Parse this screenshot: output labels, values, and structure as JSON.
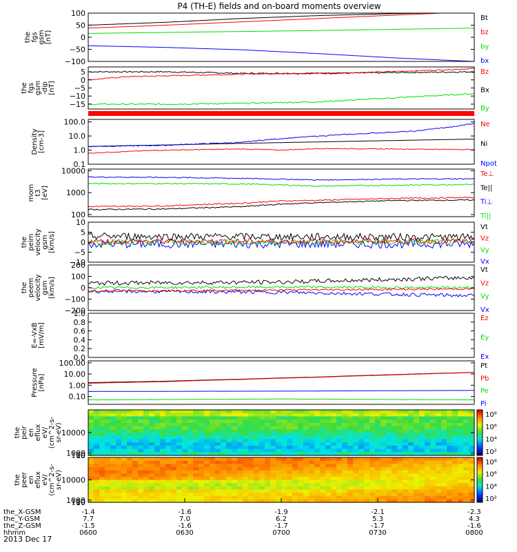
{
  "title": "P4 (TH-E) fields and on-board moments overview",
  "date_label": "2013 Dec 17",
  "ephemeris": {
    "rows": [
      {
        "label": "the_X-GSM",
        "values": [
          "-1.4",
          "-1.6",
          "-1.9",
          "-2.1",
          "-2.3"
        ]
      },
      {
        "label": "the_Y-GSM",
        "values": [
          "7.7",
          "7.0",
          "6.2",
          "5.3",
          "4.3"
        ]
      },
      {
        "label": "the_Z-GSM",
        "values": [
          "-1.5",
          "-1.6",
          "-1.7",
          "-1.7",
          "-1.6"
        ]
      },
      {
        "label": "hhmm",
        "values": [
          "0600",
          "0630",
          "0700",
          "0730",
          "0800"
        ]
      }
    ]
  },
  "colorbar_ticks": [
    "10⁸",
    "10⁶",
    "10⁴",
    "10²"
  ],
  "chart_data": [
    {
      "type": "line",
      "ylabel": [
        "the",
        "fgs",
        "gsm",
        "[nT]"
      ],
      "ylim": [
        -100,
        100
      ],
      "yticks": [
        "100",
        "50",
        "0",
        "−50",
        "−100"
      ],
      "legend": [
        {
          "name": "Bt",
          "color": "#000000"
        },
        {
          "name": "bz",
          "color": "#ff0000"
        },
        {
          "name": "by",
          "color": "#00dd00"
        },
        {
          "name": "bx",
          "color": "#0000ff"
        }
      ],
      "series": [
        {
          "name": "Bt",
          "color": "#000000",
          "x": [
            0,
            0.2,
            0.4,
            0.6,
            0.8,
            1.0
          ],
          "y": [
            50,
            62,
            78,
            90,
            98,
            103
          ]
        },
        {
          "name": "bz",
          "color": "#ff0000",
          "x": [
            0,
            0.2,
            0.4,
            0.6,
            0.8,
            1.0
          ],
          "y": [
            38,
            50,
            64,
            78,
            92,
            106
          ]
        },
        {
          "name": "by",
          "color": "#00dd00",
          "x": [
            0,
            0.2,
            0.4,
            0.6,
            0.8,
            1.0
          ],
          "y": [
            16,
            20,
            24,
            28,
            33,
            38
          ]
        },
        {
          "name": "bx",
          "color": "#0000ff",
          "x": [
            0,
            0.2,
            0.4,
            0.6,
            0.8,
            1.0
          ],
          "y": [
            -35,
            -42,
            -52,
            -68,
            -86,
            -100
          ]
        }
      ]
    },
    {
      "type": "line",
      "ylabel": [
        "the",
        "fgs",
        "gsm",
        "-dip",
        "[nT]"
      ],
      "ylim": [
        -18,
        8
      ],
      "yticks": [
        "5",
        "0",
        "−5",
        "−10",
        "−15"
      ],
      "legend": [
        {
          "name": "Bz",
          "color": "#ff0000"
        },
        {
          "name": "Bx",
          "color": "#000000"
        },
        {
          "name": "By",
          "color": "#00dd00"
        }
      ],
      "series": [
        {
          "name": "Bx",
          "color": "#000000",
          "x": [
            0,
            0.2,
            0.4,
            0.6,
            0.8,
            1.0
          ],
          "y": [
            5,
            5,
            4,
            4,
            4.5,
            5
          ],
          "noise": 0.4
        },
        {
          "name": "Bz",
          "color": "#ff0000",
          "x": [
            0,
            0.1,
            0.3,
            0.5,
            0.7,
            0.9,
            1.0
          ],
          "y": [
            0,
            2,
            3,
            4,
            4.5,
            6,
            7
          ],
          "noise": 0.3
        },
        {
          "name": "By",
          "color": "#00dd00",
          "x": [
            0,
            0.2,
            0.4,
            0.6,
            0.8,
            1.0
          ],
          "y": [
            -15,
            -15,
            -14.5,
            -13.5,
            -11,
            -8.5
          ],
          "noise": 0.4
        }
      ]
    },
    {
      "type": "line",
      "log": true,
      "ylabel": [
        "Density",
        "[cm-3]"
      ],
      "ylim": [
        0.1,
        150
      ],
      "yticks": [
        "100.0",
        "10.0",
        "1.0",
        "0.1"
      ],
      "legend": [
        {
          "name": "Ne",
          "color": "#ff0000"
        },
        {
          "name": "Ni",
          "color": "#000000"
        },
        {
          "name": "Npot",
          "color": "#0000ff"
        }
      ],
      "series": [
        {
          "name": "Ni",
          "color": "#000000",
          "x": [
            0,
            0.2,
            0.4,
            0.6,
            0.8,
            1.0
          ],
          "y": [
            1.8,
            2.3,
            3.0,
            3.8,
            4.8,
            6.0
          ]
        },
        {
          "name": "Npot",
          "color": "#0000ff",
          "x": [
            0,
            0.2,
            0.4,
            0.55,
            0.7,
            0.85,
            0.95,
            1.0
          ],
          "y": [
            1.8,
            2.2,
            3.5,
            8,
            14,
            22,
            45,
            80
          ],
          "noise": 0.08
        },
        {
          "name": "Ne",
          "color": "#ff0000",
          "x": [
            0,
            0.2,
            0.4,
            0.5,
            0.6,
            0.8,
            1.0
          ],
          "y": [
            0.6,
            1.0,
            1.2,
            1.0,
            1.3,
            1.2,
            1.1
          ],
          "noise": 0.06
        }
      ]
    },
    {
      "type": "line",
      "log": true,
      "ylabel": [
        "mom",
        "t3",
        "[eV]"
      ],
      "ylim": [
        80,
        12000
      ],
      "yticks": [
        "10000",
        "1000",
        "100"
      ],
      "legend": [
        {
          "name": "Te⊥",
          "color": "#ff0000"
        },
        {
          "name": "Te||",
          "color": "#000000"
        },
        {
          "name": "Ti⊥",
          "color": "#0000ff"
        },
        {
          "name": "Ti||",
          "color": "#00dd00"
        }
      ],
      "series": [
        {
          "name": "Ti⊥",
          "color": "#0000ff",
          "x": [
            0,
            0.2,
            0.4,
            0.6,
            0.8,
            1.0
          ],
          "y": [
            5200,
            5000,
            4500,
            3800,
            4200,
            4300
          ],
          "noise": 0.05
        },
        {
          "name": "Ti||",
          "color": "#00dd00",
          "x": [
            0,
            0.2,
            0.4,
            0.6,
            0.8,
            1.0
          ],
          "y": [
            2600,
            2600,
            2500,
            2000,
            2200,
            2400
          ],
          "noise": 0.06
        },
        {
          "name": "Te⊥",
          "color": "#ff0000",
          "x": [
            0,
            0.2,
            0.4,
            0.5,
            0.6,
            0.8,
            1.0
          ],
          "y": [
            230,
            250,
            330,
            420,
            450,
            550,
            600
          ],
          "noise": 0.06
        },
        {
          "name": "Te||",
          "color": "#000000",
          "x": [
            0,
            0.2,
            0.4,
            0.5,
            0.6,
            0.8,
            1.0
          ],
          "y": [
            170,
            180,
            230,
            300,
            350,
            440,
            460
          ],
          "noise": 0.06
        }
      ]
    },
    {
      "type": "line",
      "ylabel": [
        "the",
        "peim",
        "velocity",
        "gsm",
        "[km/s]"
      ],
      "ylim": [
        -10,
        10
      ],
      "yticks": [
        "10",
        "5",
        "0",
        "−5",
        "−10"
      ],
      "legend": [
        {
          "name": "Vt",
          "color": "#000000"
        },
        {
          "name": "Vz",
          "color": "#ff0000"
        },
        {
          "name": "Vy",
          "color": "#00dd00"
        },
        {
          "name": "Vx",
          "color": "#0000ff"
        }
      ],
      "series": [
        {
          "name": "Vx",
          "color": "#0000ff",
          "x": [
            0,
            1.0
          ],
          "y": [
            -1,
            -1
          ],
          "noise": 2.0
        },
        {
          "name": "Vy",
          "color": "#00dd00",
          "x": [
            0,
            1.0
          ],
          "y": [
            0,
            0
          ],
          "noise": 1.5
        },
        {
          "name": "Vz",
          "color": "#ff0000",
          "x": [
            0,
            1.0
          ],
          "y": [
            0.5,
            0.5
          ],
          "noise": 1.3
        },
        {
          "name": "Vt",
          "color": "#000000",
          "x": [
            0,
            1.0
          ],
          "y": [
            3,
            2.5
          ],
          "noise": 1.8
        }
      ]
    },
    {
      "type": "line",
      "ylabel": [
        "the",
        "peem",
        "velocity",
        "gsm",
        "[km/s]"
      ],
      "ylim": [
        -200,
        200
      ],
      "yticks": [
        "200",
        "100",
        "0",
        "−100",
        "−200"
      ],
      "legend": [
        {
          "name": "Vt",
          "color": "#000000"
        },
        {
          "name": "Vz",
          "color": "#ff0000"
        },
        {
          "name": "Vy",
          "color": "#00dd00"
        },
        {
          "name": "Vx",
          "color": "#0000ff"
        }
      ],
      "series": [
        {
          "name": "Vx",
          "color": "#0000ff",
          "x": [
            0,
            0.5,
            1.0
          ],
          "y": [
            -30,
            -40,
            -70
          ],
          "noise": 15
        },
        {
          "name": "Vy",
          "color": "#00dd00",
          "x": [
            0,
            0.5,
            1.0
          ],
          "y": [
            0,
            5,
            0
          ],
          "noise": 10
        },
        {
          "name": "Vz",
          "color": "#ff0000",
          "x": [
            0,
            0.5,
            1.0
          ],
          "y": [
            -30,
            -20,
            -10
          ],
          "noise": 8
        },
        {
          "name": "Vt",
          "color": "#000000",
          "x": [
            0,
            0.5,
            1.0
          ],
          "y": [
            40,
            50,
            90
          ],
          "noise": 18
        }
      ]
    },
    {
      "type": "line",
      "ylabel": [
        "E=-VxB",
        "[mV/m]"
      ],
      "ylim": [
        0,
        1
      ],
      "yticks": [
        "1.0",
        "0.8",
        "0.6",
        "0.4",
        "0.2",
        "0.0"
      ],
      "legend": [
        {
          "name": "Ez",
          "color": "#ff0000"
        },
        {
          "name": "Ey",
          "color": "#00dd00"
        },
        {
          "name": "Ex",
          "color": "#0000ff"
        }
      ],
      "series": []
    },
    {
      "type": "line",
      "log": true,
      "ylabel": [
        "Pressure",
        "[nPa]"
      ],
      "ylim": [
        0.02,
        150
      ],
      "yticks": [
        "100.00",
        "10.00",
        "1.00",
        "0.10"
      ],
      "legend": [
        {
          "name": "Pt",
          "color": "#000000"
        },
        {
          "name": "Pb",
          "color": "#ff0000"
        },
        {
          "name": "Pe",
          "color": "#00dd00"
        },
        {
          "name": "Pi",
          "color": "#0000ff"
        }
      ],
      "series": [
        {
          "name": "Pt",
          "color": "#000000",
          "x": [
            0,
            0.2,
            0.4,
            0.6,
            0.8,
            1.0
          ],
          "y": [
            1.7,
            2.3,
            3.5,
            5.5,
            9,
            14
          ]
        },
        {
          "name": "Pb",
          "color": "#ff0000",
          "x": [
            0,
            0.2,
            0.4,
            0.6,
            0.8,
            1.0
          ],
          "y": [
            1.5,
            2.1,
            3.3,
            5.2,
            8.5,
            13.5
          ]
        },
        {
          "name": "Pi",
          "color": "#0000ff",
          "x": [
            0,
            0.5,
            1.0
          ],
          "y": [
            0.28,
            0.3,
            0.35
          ],
          "noise": 0.01
        },
        {
          "name": "Pe",
          "color": "#00dd00",
          "x": [
            0,
            0.5,
            1.0
          ],
          "y": [
            0.05,
            0.06,
            0.05
          ],
          "noise": 0.03
        }
      ]
    },
    {
      "type": "heatmap",
      "ylabel": [
        "the",
        "peir",
        "en",
        "eflux",
        "eV/",
        "(cm^2-s-",
        "sr-eV)"
      ],
      "ylim": [
        5,
        20000
      ],
      "yticks": [
        "10000",
        "1000",
        "100",
        "10"
      ],
      "cmap": "ion"
    },
    {
      "type": "heatmap",
      "ylabel": [
        "the",
        "peer",
        "en",
        "eflux",
        "eV/",
        "(cm^2-s-",
        "sr-eV)"
      ],
      "ylim": [
        5,
        20000
      ],
      "yticks": [
        "10000",
        "1000",
        "100",
        "10"
      ],
      "cmap": "electron"
    }
  ]
}
